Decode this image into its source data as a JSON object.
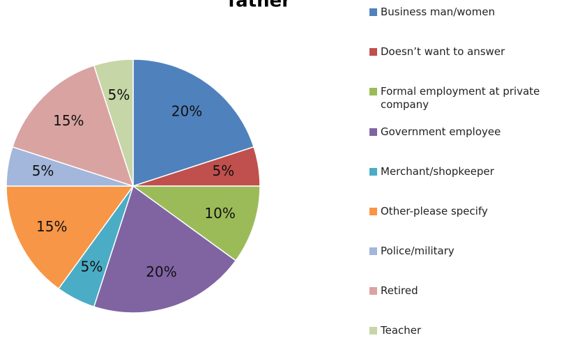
{
  "chart_data": {
    "type": "pie",
    "title": "father",
    "categories": [
      "Business man/women",
      "Doesn’t want to answer",
      "Formal employment at private company",
      "Government employee",
      "Merchant/shopkeeper",
      "Other-please specify",
      "Police/military",
      "Retired",
      "Teacher"
    ],
    "values": [
      20,
      5,
      10,
      20,
      5,
      15,
      5,
      15,
      5
    ],
    "value_labels": [
      "20%",
      "5%",
      "10%",
      "20%",
      "5%",
      "15%",
      "5%",
      "15%",
      "5%"
    ],
    "colors": [
      "#4f81bd",
      "#c0504d",
      "#9bbb59",
      "#8064a2",
      "#4bacc6",
      "#f79646",
      "#a3b6db",
      "#d9a3a1",
      "#c6d6a6"
    ]
  }
}
